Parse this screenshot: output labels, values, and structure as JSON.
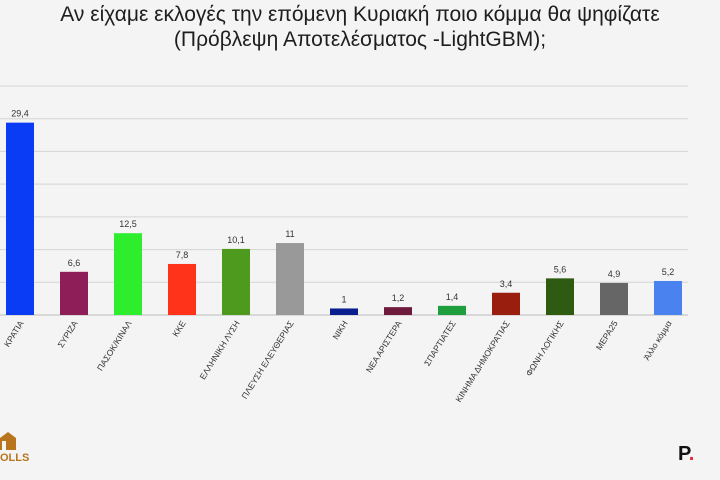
{
  "title": {
    "line1": "Αν είχαμε εκλογές την επόμενη Κυριακή ποιο κόμμα θα ψηφίζατε",
    "line2": "(Πρόβλεψη Αποτελέσματος -LightGBM);"
  },
  "logos": {
    "left_text": "OLLS",
    "right_text": "P"
  },
  "chart_data": {
    "type": "bar",
    "title": "Αν είχαμε εκλογές την επόμενη Κυριακή ποιο κόμμα θα ψηφίζατε (Πρόβλεψη Αποτελέσματος -LightGBM);",
    "ylim": [
      0,
      35
    ],
    "grid": true,
    "categories": [
      "ΚΡΑΤΙΑ",
      "ΣΥΡΙΖΑ",
      "ΠΑΣΟΚ/ΚΙΝΑΛ",
      "ΚΚΕ",
      "ΕΛΛΗΝΙΚΗ ΛΥΣΗ",
      "ΠΛΕΥΣΗ ΕΛΕΥΘΕΡΙΑΣ",
      "ΝΙΚΗ",
      "ΝΕΑ ΑΡΙΣΤΕΡΑ",
      "ΣΠΑΡΤΙΑΤΕΣ",
      "ΚΙΝΗΜΑ ΔΗΜΟΚΡΑΤΙΑΣ",
      "ΦΩΝΗ ΛΟΓΙΚΗΣ",
      "ΜΕΡΑ25",
      "Άλλο κόμμα"
    ],
    "values": [
      29.4,
      6.6,
      12.5,
      7.8,
      10.1,
      11,
      1,
      1.2,
      1.4,
      3.4,
      5.6,
      4.9,
      5.2
    ],
    "value_labels": [
      "29,4",
      "6,6",
      "12,5",
      "7,8",
      "10,1",
      "11",
      "1",
      "1,2",
      "1,4",
      "3,4",
      "5,6",
      "4,9",
      "5,2"
    ],
    "colors": [
      "#0a3cf5",
      "#8e1e58",
      "#2ded2d",
      "#ff3319",
      "#4e9a1e",
      "#999999",
      "#0b1e8f",
      "#6e1a3c",
      "#1e9e3c",
      "#9a1e0e",
      "#2e5a12",
      "#666666",
      "#4a82f0"
    ]
  }
}
